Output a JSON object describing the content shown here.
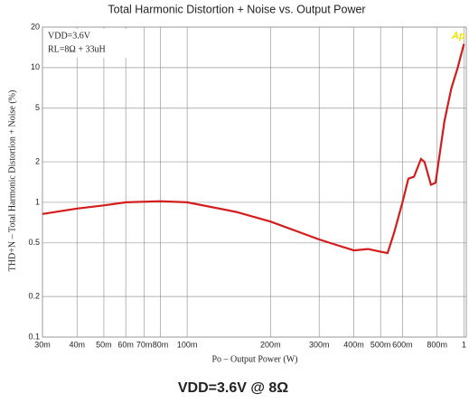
{
  "chart_data": {
    "type": "line",
    "title": "Total Harmonic Distortion + Noise vs. Output Power",
    "x_label": "Po  –  Output Power (W)",
    "y_label": "THD+N  –  Total Harmonic Distortion + Noise (%)",
    "annotations": [
      "VDD=3.6V",
      "RL=8Ω + 33uH",
      "Ap"
    ],
    "caption": "VDD=3.6V @ 8Ω",
    "x_log": true,
    "y_log": true,
    "grid": true,
    "xlim": [
      0.03,
      1.02
    ],
    "ylim": [
      0.1,
      20
    ],
    "xticks": [
      {
        "value": 0.03,
        "label": "30m"
      },
      {
        "value": 0.04,
        "label": "40m"
      },
      {
        "value": 0.05,
        "label": "50m"
      },
      {
        "value": 0.06,
        "label": "60m"
      },
      {
        "value": 0.07,
        "label": "70m"
      },
      {
        "value": 0.08,
        "label": "80m"
      },
      {
        "value": 0.1,
        "label": "100m"
      },
      {
        "value": 0.2,
        "label": "200m"
      },
      {
        "value": 0.3,
        "label": "300m"
      },
      {
        "value": 0.4,
        "label": "400m"
      },
      {
        "value": 0.5,
        "label": "500m"
      },
      {
        "value": 0.6,
        "label": "600m"
      },
      {
        "value": 0.8,
        "label": "800m"
      },
      1
    ],
    "yticks": [
      0.1,
      0.2,
      0.5,
      1,
      2,
      5,
      10,
      20
    ],
    "x": [
      0.03,
      0.04,
      0.05,
      0.06,
      0.08,
      0.1,
      0.15,
      0.2,
      0.3,
      0.4,
      0.45,
      0.5,
      0.53,
      0.56,
      0.6,
      0.63,
      0.66,
      0.7,
      0.72,
      0.76,
      0.79,
      0.85,
      0.9,
      0.95,
      1.0
    ],
    "series": [
      {
        "name": "THD+N",
        "color": "#d41c1c",
        "values": [
          0.82,
          0.9,
          0.95,
          1.0,
          1.02,
          1.0,
          0.85,
          0.72,
          0.53,
          0.44,
          0.45,
          0.43,
          0.42,
          0.6,
          1.0,
          1.5,
          1.55,
          2.1,
          2.0,
          1.35,
          1.4,
          4,
          7,
          10,
          15
        ]
      }
    ]
  }
}
